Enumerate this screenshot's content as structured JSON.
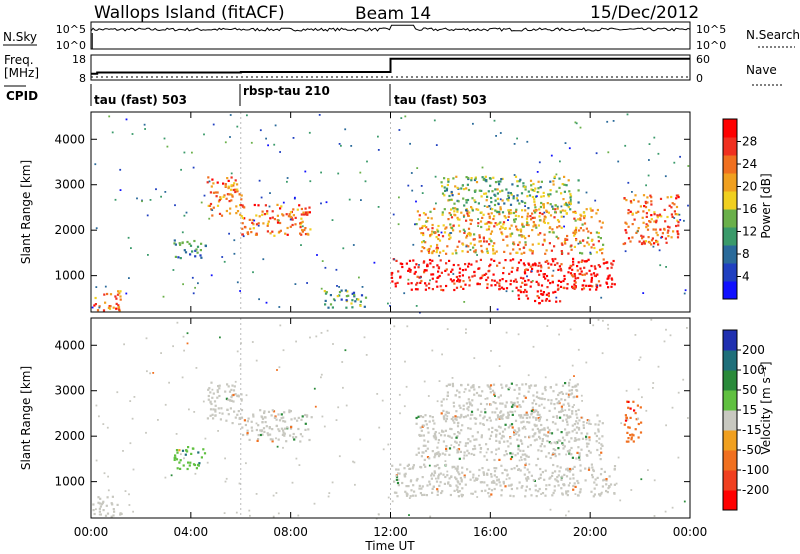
{
  "header": {
    "station": "Wallops Island (fitACF)",
    "beam": "Beam 14",
    "date": "15/Dec/2012"
  },
  "status_panels": {
    "nsky_label": "N.Sky",
    "nsky_ticks": [
      "10^5",
      "10^0"
    ],
    "nsearch_label": "N.Search",
    "nsearch_ticks": [
      "10^5",
      "10^0"
    ],
    "freq_label_line1": "Freq.",
    "freq_label_line2": "[MHz]",
    "freq_ticks": [
      "18",
      "8"
    ],
    "nave_label": "Nave",
    "nave_ticks": [
      "60",
      "0"
    ],
    "cpid_label": "CPID",
    "freq_steps": [
      {
        "start_hour": 0.0,
        "freq_mhz": 10.5
      },
      {
        "start_hour": 0.25,
        "freq_mhz": 11.0
      },
      {
        "start_hour": 6.0,
        "freq_mhz": 11.2
      },
      {
        "start_hour": 12.0,
        "freq_mhz": 16.5
      }
    ],
    "modes": [
      {
        "label": "tau (fast) 503",
        "start_hour": 0.0
      },
      {
        "label": "rbsp-tau 210",
        "start_hour": 6.0
      },
      {
        "label": "tau (fast) 503",
        "start_hour": 12.0
      }
    ]
  },
  "chart_data": [
    {
      "type": "heatmap",
      "name": "power",
      "ylabel": "Slant Range [km]",
      "xlabel": "",
      "xlim": [
        0,
        24
      ],
      "ylim": [
        200,
        4600
      ],
      "yticks": [
        "1000",
        "2000",
        "3000",
        "4000"
      ],
      "colorbar_label": "Power [dB]",
      "colorbar_ticks": [
        "4",
        "8",
        "12",
        "16",
        "20",
        "24",
        "28"
      ],
      "colorbar_colors": [
        "#1010ff",
        "#2040c0",
        "#2a6a9a",
        "#3a9a6a",
        "#6ab04a",
        "#f0d020",
        "#f0a020",
        "#f07020",
        "#f03020",
        "#ff0000"
      ],
      "echo_regions": [
        {
          "hour_start": 0.0,
          "hour_end": 1.2,
          "range_start": 250,
          "range_end": 700,
          "power_db": 22
        },
        {
          "hour_start": 3.3,
          "hour_end": 4.6,
          "range_start": 1400,
          "range_end": 1800,
          "power_db": 10
        },
        {
          "hour_start": 4.6,
          "hour_end": 6.0,
          "range_start": 2300,
          "range_end": 3200,
          "power_db": 22
        },
        {
          "hour_start": 6.0,
          "hour_end": 8.8,
          "range_start": 1900,
          "range_end": 2600,
          "power_db": 22
        },
        {
          "hour_start": 9.3,
          "hour_end": 11.0,
          "range_start": 300,
          "range_end": 700,
          "power_db": 8
        },
        {
          "hour_start": 12.0,
          "hour_end": 21.0,
          "range_start": 700,
          "range_end": 1400,
          "power_db": 28
        },
        {
          "hour_start": 13.0,
          "hour_end": 20.5,
          "range_start": 1500,
          "range_end": 2500,
          "power_db": 18
        },
        {
          "hour_start": 14.0,
          "hour_end": 19.5,
          "range_start": 2400,
          "range_end": 3200,
          "power_db": 12
        },
        {
          "hour_start": 17.0,
          "hour_end": 18.8,
          "range_start": 400,
          "range_end": 700,
          "power_db": 28
        },
        {
          "hour_start": 21.3,
          "hour_end": 23.5,
          "range_start": 1700,
          "range_end": 2800,
          "power_db": 22
        }
      ]
    },
    {
      "type": "heatmap",
      "name": "velocity",
      "ylabel": "Slant Range [km]",
      "xlabel": "Time UT",
      "xlim": [
        0,
        24
      ],
      "ylim": [
        200,
        4600
      ],
      "xticks": [
        "00:00",
        "04:00",
        "08:00",
        "12:00",
        "16:00",
        "20:00",
        "00:00"
      ],
      "yticks": [
        "1000",
        "2000",
        "3000",
        "4000"
      ],
      "colorbar_label": "Velocity [m s⁻¹]",
      "colorbar_ticks": [
        "200",
        "100",
        "50",
        "15",
        "-15",
        "-50",
        "-100",
        "-200"
      ],
      "colorbar_colors": [
        "#2030b0",
        "#1f6f7a",
        "#2a8a3a",
        "#60c040",
        "#c8c8c0",
        "#f0a020",
        "#f07020",
        "#f04020",
        "#ff0000"
      ],
      "echo_regions": [
        {
          "hour_start": 0.0,
          "hour_end": 1.2,
          "range_start": 250,
          "range_end": 700,
          "velocity": 0
        },
        {
          "hour_start": 3.3,
          "hour_end": 4.6,
          "range_start": 1300,
          "range_end": 1800,
          "velocity": 60
        },
        {
          "hour_start": 4.6,
          "hour_end": 6.0,
          "range_start": 2300,
          "range_end": 3200,
          "velocity": 0
        },
        {
          "hour_start": 6.0,
          "hour_end": 8.8,
          "range_start": 1900,
          "range_end": 2600,
          "velocity": 0
        },
        {
          "hour_start": 12.0,
          "hour_end": 21.0,
          "range_start": 700,
          "range_end": 1400,
          "velocity": 0
        },
        {
          "hour_start": 13.0,
          "hour_end": 20.5,
          "range_start": 1500,
          "range_end": 2500,
          "velocity": 0
        },
        {
          "hour_start": 14.0,
          "hour_end": 19.5,
          "range_start": 2400,
          "range_end": 3200,
          "velocity": 0
        },
        {
          "hour_start": 21.3,
          "hour_end": 22.0,
          "range_start": 1900,
          "range_end": 2800,
          "velocity": -50
        }
      ]
    }
  ]
}
